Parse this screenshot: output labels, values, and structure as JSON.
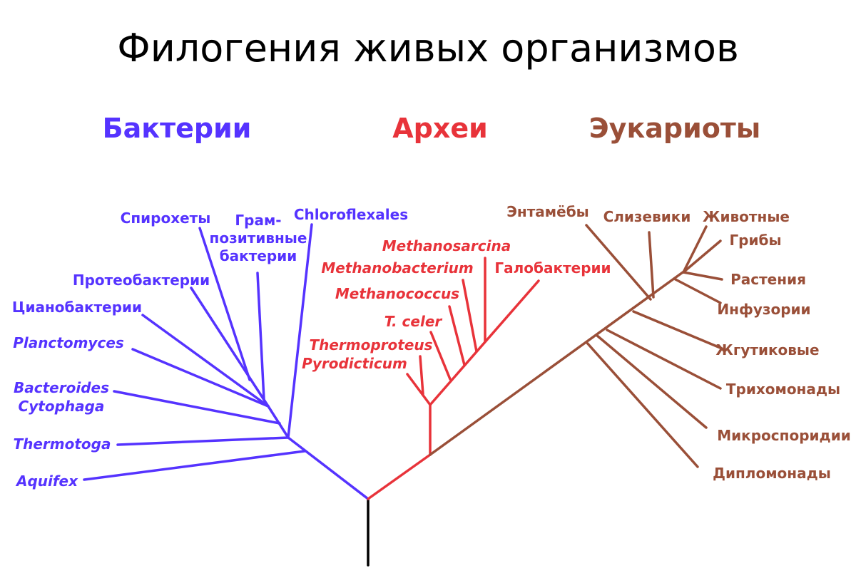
{
  "title": "Филогения живых организмов",
  "colors": {
    "bacteria": "#5533ff",
    "archaea": "#e8333a",
    "eukaryotes": "#9a4f38",
    "root": "#000000"
  },
  "domains": {
    "bacteria": "Бактерии",
    "archaea": "Археи",
    "eukaryotes": "Эукариоты"
  },
  "bacteria": {
    "spirochetes": "Спирохеты",
    "gram_line1": "Грам-",
    "gram_line2": "позитивные",
    "gram_line3": "бактерии",
    "chloroflexales": "Chloroflexales",
    "proteobacteria": "Протеобактерии",
    "cyanobacteria": "Цианобактерии",
    "planctomyces": "Planctomyces",
    "bacteroides_line1": "Bacteroides",
    "bacteroides_line2": "Cytophaga",
    "thermotoga": "Thermotoga",
    "aquifex": "Aquifex"
  },
  "archaea": {
    "methanosarcina": "Methanosarcina",
    "methanobacterium": "Methanobacterium",
    "halobacteria": "Галобактерии",
    "methanococcus": "Methanococcus",
    "t_celer": "T. celer",
    "thermoproteus": "Thermoproteus",
    "pyrodicticum": "Pyrodicticum"
  },
  "eukaryotes": {
    "entamoebae": "Энтамёбы",
    "slime_molds": "Слизевики",
    "animals": "Животные",
    "fungi": "Грибы",
    "plants": "Растения",
    "ciliates": "Инфузории",
    "flagellates": "Жгутиковые",
    "trichomonads": "Трихомонады",
    "microsporidia": "Микроспоридии",
    "diplomonads": "Дипломонады"
  }
}
